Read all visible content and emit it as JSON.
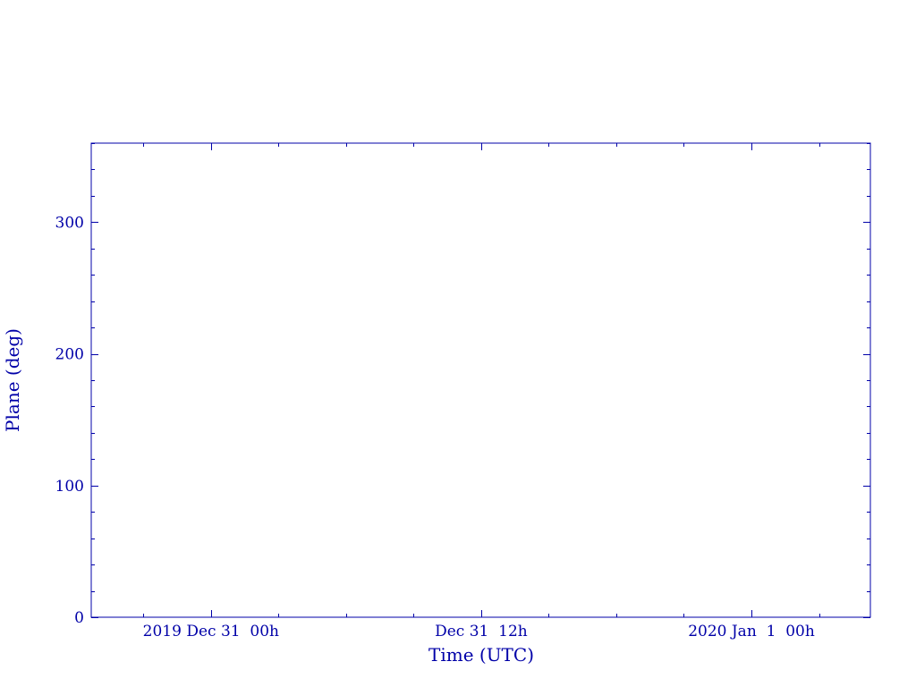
{
  "chart_data": {
    "type": "line",
    "title": "",
    "xlabel": "Time (UTC)",
    "ylabel": "Plane (deg)",
    "xlim": [
      "2019-12-30T18:41:00Z",
      "2020-01-01T05:17:00Z"
    ],
    "ylim": [
      0,
      360
    ],
    "x_major_ticks": [
      {
        "time": "2019-12-31T00:00:00Z",
        "label": "2019 Dec 31  00h"
      },
      {
        "time": "2019-12-31T12:00:00Z",
        "label": "Dec 31  12h"
      },
      {
        "time": "2020-01-01T00:00:00Z",
        "label": "2020 Jan  1  00h"
      }
    ],
    "x_minor_tick_hours": 3,
    "y_major_ticks": [
      0,
      100,
      200,
      300
    ],
    "y_minor_step": 20,
    "grid": false,
    "series": [],
    "color": "#0000a8"
  }
}
